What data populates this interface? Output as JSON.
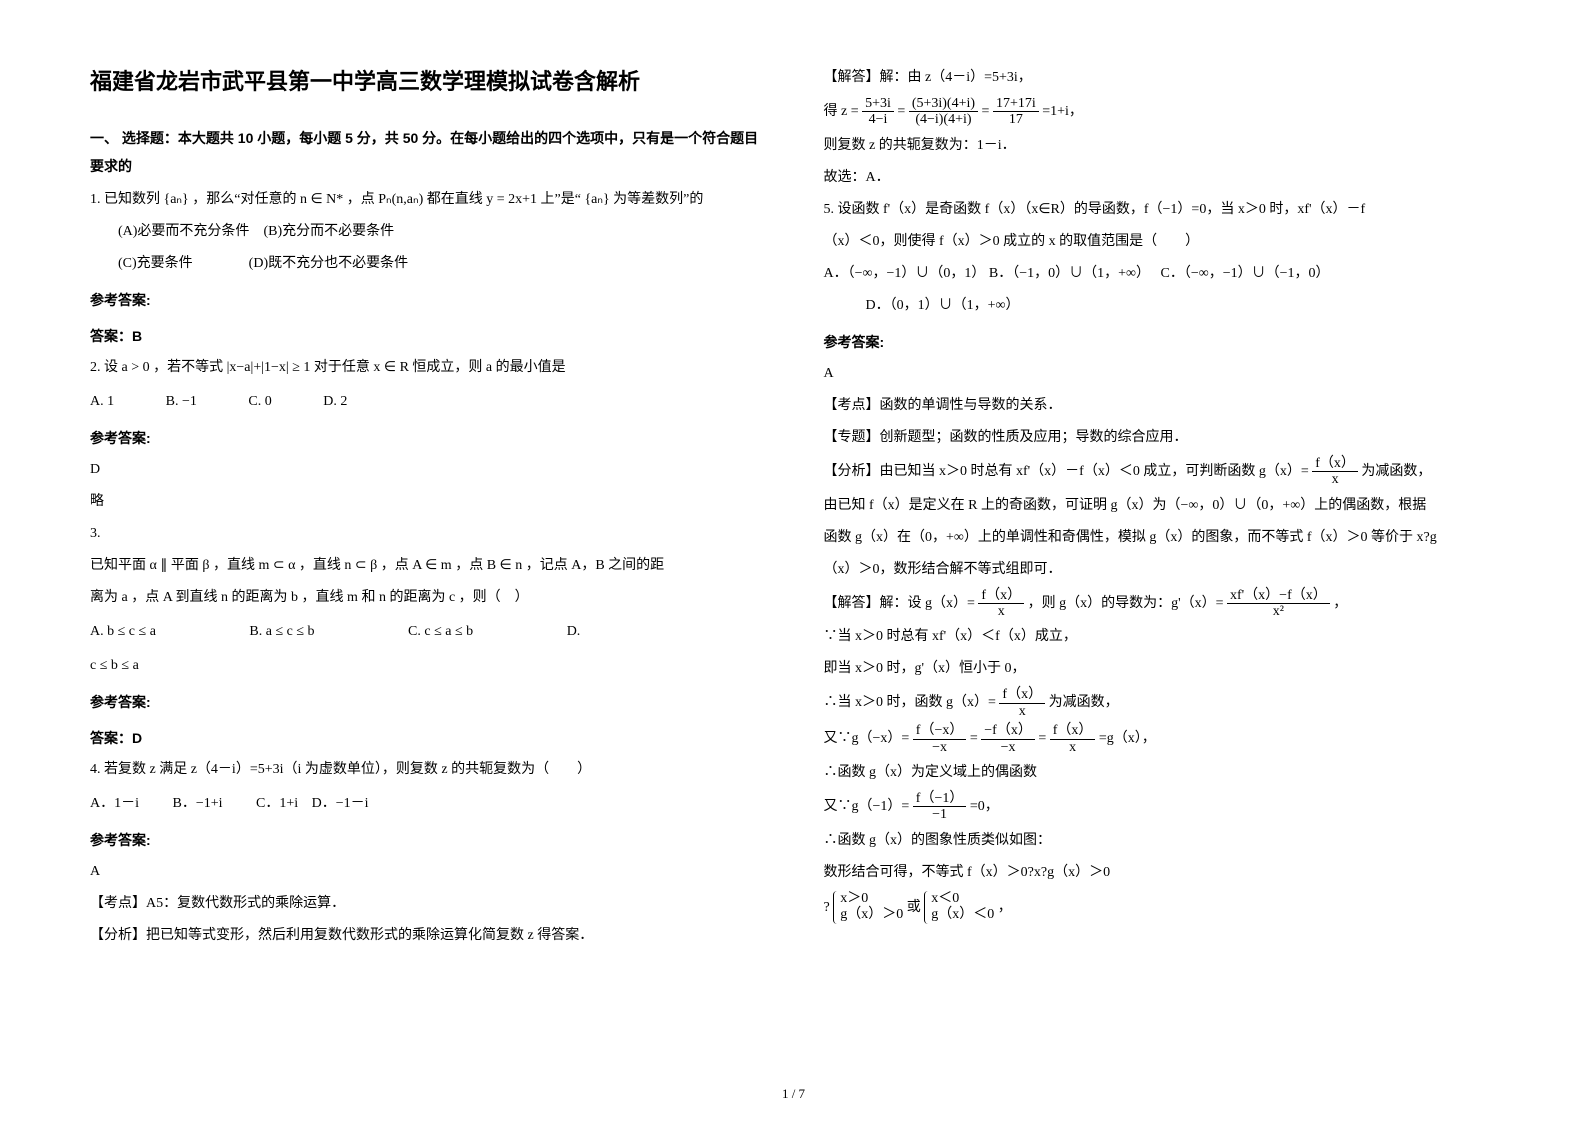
{
  "title": "福建省龙岩市武平县第一中学高三数学理模拟试卷含解析",
  "section1_head": "一、 选择题：本大题共 10 小题，每小题 5 分，共 50 分。在每小题给出的四个选项中，只有是一个符合题目要求的",
  "q1": {
    "stem": "1. 已知数列 {aₙ} ，那么“对任意的 n ∈ N* ，点 Pₙ(n,aₙ) 都在直线 y = 2x+1 上”是“ {aₙ} 为等差数列”的",
    "optA": "(A)必要而不充分条件",
    "optB": "(B)充分而不必要条件",
    "optC": "(C)充要条件",
    "optD": "(D)既不充分也不必要条件",
    "ref": "参考答案:",
    "ans": "答案：B"
  },
  "q2": {
    "stem": "2. 设 a > 0 ，若不等式 |x−a|+|1−x| ≥ 1 对于任意 x ∈ R 恒成立，则 a 的最小值是",
    "A": "A. 1",
    "B": "B. −1",
    "C": "C. 0",
    "D": "D. 2",
    "ref": "参考答案:",
    "ans1": "D",
    "ans2": "略"
  },
  "q3": {
    "num": "3.",
    "stem1": "已知平面 α ∥ 平面 β ，直线 m ⊂ α ，直线 n ⊂ β ，点 A ∈ m ，点 B ∈ n ，记点 A，B 之间的距",
    "stem2": "离为 a ，点 A 到直线 n 的距离为 b ，直线 m 和 n 的距离为 c ，则（　）",
    "A": "A. b ≤ c ≤ a",
    "B": "B. a ≤ c ≤ b",
    "C": "C. c ≤ a ≤ b",
    "D": "D.",
    "Dline": "c ≤ b ≤ a",
    "ref": "参考答案:",
    "ans": "答案：D"
  },
  "q4": {
    "stem": "4. 若复数 z 满足 z（4－i）=5+3i（i 为虚数单位），则复数 z 的共轭复数为（　　）",
    "A": "A．1－i",
    "B": "B．−1+i",
    "C": "C．1+i",
    "D": "D．−1－i",
    "ref": "参考答案:",
    "ans": "A",
    "kd": "【考点】A5：复数代数形式的乘除运算．",
    "fx": "【分析】把已知等式变形，然后利用复数代数形式的乘除运算化简复数 z 得答案．",
    "jie1": "【解答】解：由 z（4－i）=5+3i，",
    "jie2a": "得 z =",
    "frac1n": "5+3i",
    "frac1d": "4−i",
    "eq1": " = ",
    "frac2n": "(5+3i)(4+i)",
    "frac2d": "(4−i)(4+i)",
    "eq2": " = ",
    "frac3n": "17+17i",
    "frac3d": "17",
    "eq3": " =1+i，",
    "jie3": "则复数 z 的共轭复数为：1－i．",
    "jie4": "故选：A．"
  },
  "q5": {
    "stem1": "5. 设函数 f'（x）是奇函数 f（x）（x∈R）的导函数，f（−1）=0，当 x＞0 时，xf'（x）－f",
    "stem2": "（x）＜0，则使得 f（x）＞0 成立的 x 的取值范围是（　　）",
    "A": "A．（−∞，−1）∪（0，1）",
    "B": "B．（−1，0）∪（1，+∞）",
    "C": "C．（−∞，−1）∪（−1，0）",
    "D": "D．（0，1）∪（1，+∞）",
    "ref": "参考答案:",
    "ans": "A",
    "kd": "【考点】函数的单调性与导数的关系．",
    "zt": "【专题】创新题型；函数的性质及应用；导数的综合应用．",
    "fx1": "【分析】由已知当 x＞0 时总有 xf'（x）－f（x）＜0 成立，可判断函数 g（x）= ",
    "fx_fracn": "f（x）",
    "fx_fracd": "x",
    "fx1b": " 为减函数，",
    "fx2": "由已知 f（x）是定义在 R 上的奇函数，可证明 g（x）为（−∞，0）∪（0，+∞）上的偶函数，根据",
    "fx3": "函数 g（x）在（0，+∞）上的单调性和奇偶性，模拟 g（x）的图象，而不等式 f（x）＞0 等价于 x?g",
    "fx4": "（x）＞0，数形结合解不等式组即可．",
    "jie1a": "【解答】解：设 g（x）= ",
    "jie1_f1n": "f（x）",
    "jie1_f1d": "x",
    "jie1b": " ，则 g（x）的导数为：g'（x）= ",
    "jie1_f2n": "xf'（x）−f（x）",
    "jie1_f2d": "x²",
    "jie1c": " ，",
    "jie2": "∵当 x＞0 时总有 xf'（x）＜f（x）成立，",
    "jie3": "即当 x＞0 时，g'（x）恒小于 0，",
    "jie4a": "∴当 x＞0 时，函数 g（x）= ",
    "jie4_fn": "f（x）",
    "jie4_fd": "x",
    "jie4b": " 为减函数，",
    "jie5a": "又∵g（−x）= ",
    "jie5_f1n": "f（−x）",
    "jie5_f1d": "−x",
    "jie5_eq1": " = ",
    "jie5_f2n": "−f（x）",
    "jie5_f2d": "−x",
    "jie5_eq2": " = ",
    "jie5_f3n": "f（x）",
    "jie5_f3d": "x",
    "jie5b": " =g（x），",
    "jie6": "∴函数 g（x）为定义域上的偶函数",
    "jie7a": "又∵g（−1）= ",
    "jie7_fn": "f（−1）",
    "jie7_fd": "−1",
    "jie7b": " =0，",
    "jie8": "∴函数 g（x）的图象性质类似如图：",
    "jie9": "数形结合可得，不等式 f（x）＞0?x?g（x）＞0",
    "jie10_qm": "?",
    "jie10_c1a": "x＞0",
    "jie10_c1b": "g（x）＞0",
    "jie10_or": "或",
    "jie10_c2a": "x＜0",
    "jie10_c2b": "g（x）＜0",
    "jie10_end": "，"
  },
  "pagenum": "1 / 7"
}
